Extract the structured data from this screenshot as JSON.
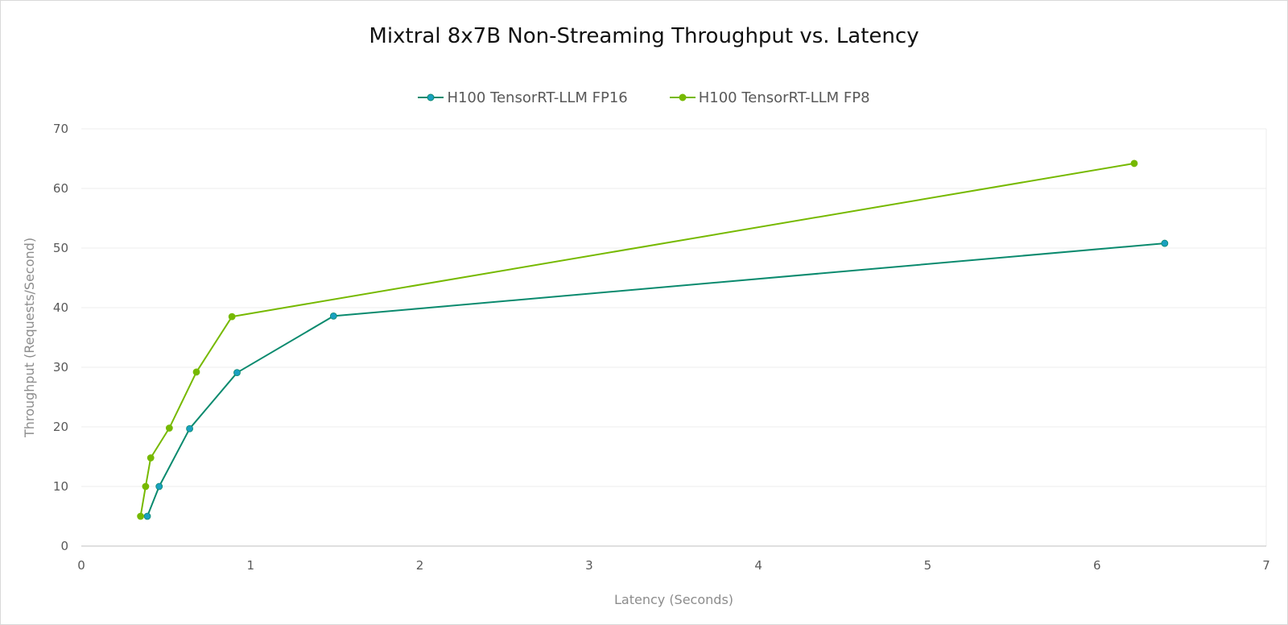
{
  "chart_data": {
    "type": "line",
    "title": "Mixtral 8x7B Non-Streaming Throughput vs. Latency",
    "xlabel": "Latency (Seconds)",
    "ylabel": "Throughput (Requests/Second)",
    "xlim": [
      0,
      7
    ],
    "ylim": [
      0,
      70
    ],
    "xticks": [
      "0",
      "1",
      "2",
      "3",
      "4",
      "5",
      "6",
      "7"
    ],
    "yticks": [
      "0",
      "10",
      "20",
      "30",
      "40",
      "50",
      "60",
      "70"
    ],
    "grid": "horizontal",
    "legend_position": "top",
    "series": [
      {
        "name": "H100 TensorRT-LLM FP16",
        "line_color": "#0a8a6e",
        "marker_color": "#1aa0c0",
        "points": [
          [
            0.39,
            5
          ],
          [
            0.46,
            10
          ],
          [
            0.64,
            19.7
          ],
          [
            0.92,
            29.1
          ],
          [
            1.49,
            38.6
          ],
          [
            6.4,
            50.8
          ]
        ]
      },
      {
        "name": "H100 TensorRT-LLM FP8",
        "line_color": "#76b900",
        "marker_color": "#76b900",
        "points": [
          [
            0.35,
            5
          ],
          [
            0.38,
            10
          ],
          [
            0.41,
            14.8
          ],
          [
            0.52,
            19.8
          ],
          [
            0.68,
            29.2
          ],
          [
            0.89,
            38.5
          ],
          [
            6.22,
            64.2
          ]
        ]
      }
    ]
  }
}
